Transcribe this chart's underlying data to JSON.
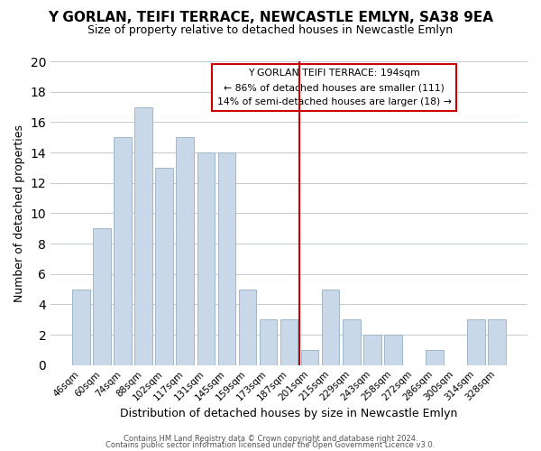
{
  "title": "Y GORLAN, TEIFI TERRACE, NEWCASTLE EMLYN, SA38 9EA",
  "subtitle": "Size of property relative to detached houses in Newcastle Emlyn",
  "xlabel": "Distribution of detached houses by size in Newcastle Emlyn",
  "ylabel": "Number of detached properties",
  "bar_labels": [
    "46sqm",
    "60sqm",
    "74sqm",
    "88sqm",
    "102sqm",
    "117sqm",
    "131sqm",
    "145sqm",
    "159sqm",
    "173sqm",
    "187sqm",
    "201sqm",
    "215sqm",
    "229sqm",
    "243sqm",
    "258sqm",
    "272sqm",
    "286sqm",
    "300sqm",
    "314sqm",
    "328sqm"
  ],
  "bar_values": [
    5,
    9,
    15,
    17,
    13,
    15,
    14,
    14,
    5,
    3,
    3,
    1,
    5,
    3,
    2,
    2,
    0,
    1,
    0,
    3,
    3
  ],
  "bar_color": "#c8d8e8",
  "bar_edge_color": "#a0b8cc",
  "ylim": [
    0,
    20
  ],
  "yticks": [
    0,
    2,
    4,
    6,
    8,
    10,
    12,
    14,
    16,
    18,
    20
  ],
  "vline_color": "#cc0000",
  "annotation_line1": "Y GORLAN TEIFI TERRACE: 194sqm",
  "annotation_line2": "← 86% of detached houses are smaller (111)",
  "annotation_line3": "14% of semi-detached houses are larger (18) →",
  "footer_line1": "Contains HM Land Registry data © Crown copyright and database right 2024.",
  "footer_line2": "Contains public sector information licensed under the Open Government Licence v3.0.",
  "background_color": "#ffffff",
  "grid_color": "#c0ccd8",
  "property_sqm": 194,
  "bin_centers": [
    46,
    60,
    74,
    88,
    102,
    117,
    131,
    145,
    159,
    173,
    187,
    201,
    215,
    229,
    243,
    258,
    272,
    286,
    300,
    314,
    328
  ]
}
